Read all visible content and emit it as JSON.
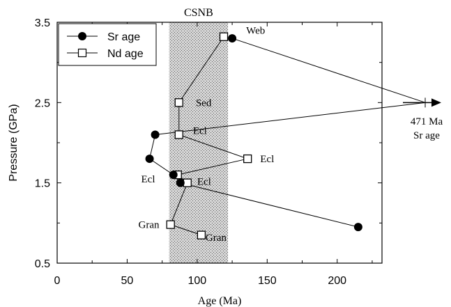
{
  "chart_data": {
    "type": "scatter",
    "xlabel": "Age (Ma)",
    "ylabel": "Pressure (GPa)",
    "xlim": [
      0,
      232
    ],
    "ylim": [
      0.5,
      3.5
    ],
    "xticks": [
      "0",
      "50",
      "100",
      "150",
      "200"
    ],
    "yticks": [
      "0.5",
      "1.5",
      "2.5",
      "3.5"
    ],
    "shaded_band": {
      "x_from": 80,
      "x_to": 122,
      "label": "CSNB"
    },
    "series": [
      {
        "name": "Sr age",
        "marker": "filled-circle",
        "points": [
          {
            "x": 125,
            "y": 3.3
          },
          {
            "x": 70,
            "y": 2.1
          },
          {
            "x": 66,
            "y": 1.8
          },
          {
            "x": 83,
            "y": 1.6
          },
          {
            "x": 88,
            "y": 1.5
          },
          {
            "x": 215,
            "y": 0.95
          }
        ]
      },
      {
        "name": "Nd age",
        "marker": "open-square",
        "points": [
          {
            "x": 119,
            "y": 3.32
          },
          {
            "x": 87,
            "y": 2.5
          },
          {
            "x": 87,
            "y": 2.1
          },
          {
            "x": 136,
            "y": 1.8
          },
          {
            "x": 86,
            "y": 1.6
          },
          {
            "x": 93,
            "y": 1.5
          },
          {
            "x": 81,
            "y": 0.98
          },
          {
            "x": 103,
            "y": 0.85
          }
        ]
      }
    ],
    "offscale_point": {
      "value": "471 Ma",
      "label": "Sr age",
      "y": 2.5
    },
    "annotations": [
      {
        "text": "Web",
        "x": 135,
        "y": 3.4
      },
      {
        "text": "Sed",
        "x": 99,
        "y": 2.5
      },
      {
        "text": "Ecl",
        "x": 97,
        "y": 2.15
      },
      {
        "text": "Ecl",
        "x": 145,
        "y": 1.8
      },
      {
        "text": "Ecl",
        "x": 60,
        "y": 1.55
      },
      {
        "text": "Ecl",
        "x": 100,
        "y": 1.52
      },
      {
        "text": "Gran",
        "x": 58,
        "y": 0.98
      },
      {
        "text": "Gran",
        "x": 106,
        "y": 0.82
      }
    ]
  }
}
